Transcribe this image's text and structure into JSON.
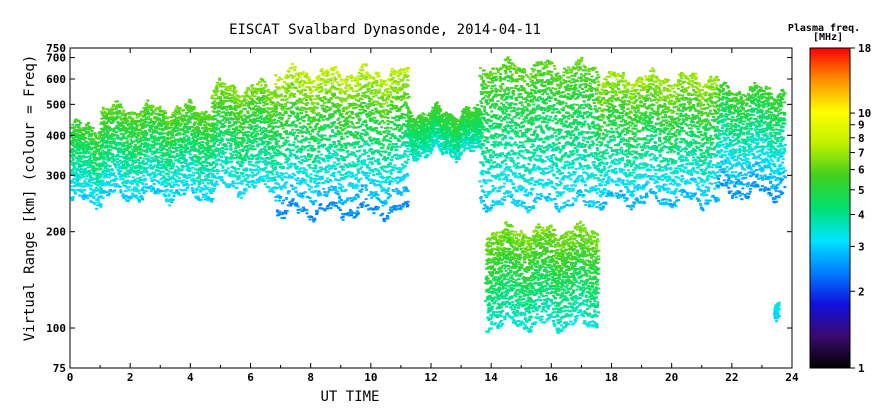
{
  "chart_data": {
    "type": "scatter",
    "title": "EISCAT Svalbard Dynasonde, 2014-04-11",
    "xlabel": "UT TIME",
    "ylabel": "Virtual Range [km] (colour = Freq)",
    "xlim": [
      0,
      24
    ],
    "ylim": [
      75,
      750
    ],
    "yscale": "log",
    "xticks": [
      0,
      2,
      4,
      6,
      8,
      10,
      12,
      14,
      16,
      18,
      20,
      22,
      24
    ],
    "yticks": [
      75,
      100,
      200,
      300,
      400,
      500,
      600,
      700,
      750
    ],
    "grid": false,
    "colorbar": {
      "title_line1": "Plasma freq.",
      "title_line2": "[MHz]",
      "scale": "log",
      "range": [
        1,
        18
      ],
      "ticks": [
        1,
        2,
        3,
        4,
        5,
        6,
        7,
        8,
        9,
        10,
        18
      ],
      "colormap": [
        "#000000",
        "#3b0a6e",
        "#1010e0",
        "#0080ff",
        "#00e5ff",
        "#00e070",
        "#40d020",
        "#c0f000",
        "#ffff00",
        "#ff9000",
        "#ff0000"
      ]
    },
    "series": [
      {
        "x_range": [
          0.0,
          1.0
        ],
        "bottom_km": 255,
        "top_km": 420,
        "freq_base_mhz": 3.0,
        "freq_top_mhz": 5.5
      },
      {
        "x_range": [
          1.0,
          4.7
        ],
        "bottom_km": 265,
        "top_km": 480,
        "freq_base_mhz": 3.0,
        "freq_top_mhz": 6.0
      },
      {
        "x_range": [
          4.7,
          6.8
        ],
        "bottom_km": 280,
        "top_km": 560,
        "freq_base_mhz": 3.2,
        "freq_top_mhz": 6.5
      },
      {
        "x_range": [
          6.8,
          11.2
        ],
        "bottom_km": 235,
        "top_km": 620,
        "freq_base_mhz": 2.5,
        "freq_top_mhz": 7.5
      },
      {
        "x_range": [
          11.2,
          13.6
        ],
        "bottom_km": 360,
        "top_km": 470,
        "freq_base_mhz": 3.5,
        "freq_top_mhz": 5.5
      },
      {
        "x_range": [
          13.6,
          17.5
        ],
        "bottom_km": 250,
        "top_km": 650,
        "freq_base_mhz": 3.0,
        "freq_top_mhz": 6.0
      },
      {
        "x_range": [
          13.8,
          17.5
        ],
        "bottom_km": 105,
        "top_km": 200,
        "freq_base_mhz": 3.5,
        "freq_top_mhz": 6.5
      },
      {
        "x_range": [
          17.5,
          21.5
        ],
        "bottom_km": 255,
        "top_km": 600,
        "freq_base_mhz": 2.8,
        "freq_top_mhz": 7.0
      },
      {
        "x_range": [
          21.5,
          23.7
        ],
        "bottom_km": 270,
        "top_km": 550,
        "freq_base_mhz": 2.5,
        "freq_top_mhz": 5.5
      },
      {
        "x_range": [
          23.4,
          23.5
        ],
        "bottom_km": 115,
        "top_km": 125,
        "freq_base_mhz": 3.0,
        "freq_top_mhz": 3.5
      }
    ]
  }
}
